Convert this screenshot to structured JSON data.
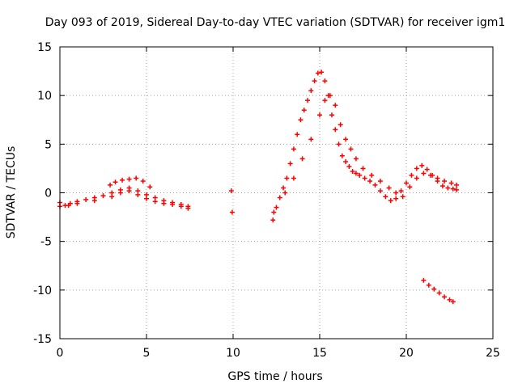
{
  "chart_data": {
    "type": "scatter",
    "title": "Day 093 of 2019, Sidereal Day-to-day VTEC variation (SDTVAR) for receiver igm1",
    "xlabel": "GPS time / hours",
    "ylabel": "SDTVAR / TECUs",
    "xlim": [
      0,
      25
    ],
    "ylim": [
      -15,
      15
    ],
    "xticks": [
      0,
      5,
      10,
      15,
      20,
      25
    ],
    "yticks": [
      -15,
      -10,
      -5,
      0,
      5,
      10,
      15
    ],
    "grid": true,
    "marker": "+",
    "series": [
      {
        "name": "igm1",
        "color": "#ff0000",
        "x": [
          0.0,
          0.3,
          0.6,
          1.0,
          1.5,
          2.0,
          2.5,
          3.0,
          3.5,
          4.0,
          4.5,
          5.0,
          5.5,
          6.0,
          6.5,
          7.0,
          7.4,
          0.0,
          0.5,
          1.0,
          2.0,
          3.0,
          3.5,
          4.0,
          4.5,
          5.0,
          5.5,
          6.0,
          6.5,
          7.0,
          7.4,
          2.9,
          3.2,
          3.6,
          4.0,
          4.4,
          4.8,
          5.2,
          9.9,
          9.95,
          12.3,
          12.35,
          12.5,
          12.7,
          12.9,
          13.1,
          13.3,
          13.5,
          13.7,
          13.9,
          14.1,
          14.3,
          14.5,
          14.7,
          14.9,
          15.1,
          15.3,
          15.5,
          15.7,
          15.9,
          16.1,
          16.3,
          16.5,
          16.7,
          16.9,
          17.1,
          17.3,
          17.6,
          17.9,
          18.2,
          18.5,
          18.8,
          19.1,
          19.4,
          19.7,
          20.0,
          20.3,
          20.6,
          20.9,
          21.2,
          21.5,
          21.8,
          22.1,
          22.4,
          22.7,
          22.9,
          13.0,
          13.5,
          14.0,
          14.5,
          15.0,
          15.3,
          15.6,
          15.9,
          16.2,
          16.5,
          16.8,
          17.1,
          17.5,
          18.0,
          18.5,
          19.0,
          19.4,
          19.8,
          20.2,
          20.6,
          21.0,
          21.4,
          21.8,
          22.2,
          22.6,
          22.9,
          21.0,
          21.3,
          21.6,
          21.9,
          22.2,
          22.5,
          22.7
        ],
        "y": [
          -1.0,
          -1.3,
          -1.1,
          -0.9,
          -0.7,
          -0.5,
          -0.3,
          0.0,
          0.3,
          0.5,
          0.2,
          -0.2,
          -0.5,
          -0.8,
          -1.0,
          -1.2,
          -1.4,
          -1.4,
          -1.3,
          -1.1,
          -0.8,
          -0.4,
          0.0,
          0.2,
          -0.2,
          -0.6,
          -0.9,
          -1.1,
          -1.2,
          -1.4,
          -1.6,
          0.8,
          1.1,
          1.3,
          1.4,
          1.5,
          1.2,
          0.6,
          0.2,
          -2.0,
          -2.8,
          -2.0,
          -1.5,
          -0.5,
          0.5,
          1.5,
          3.0,
          4.5,
          6.0,
          7.5,
          8.5,
          9.5,
          10.5,
          11.5,
          12.3,
          12.4,
          11.5,
          10.0,
          8.0,
          6.5,
          5.0,
          3.8,
          3.2,
          2.7,
          2.2,
          2.0,
          1.8,
          1.5,
          1.2,
          0.8,
          0.2,
          -0.4,
          -0.8,
          -0.6,
          0.2,
          1.0,
          1.8,
          2.5,
          2.8,
          2.4,
          1.8,
          1.2,
          0.7,
          0.5,
          0.4,
          0.3,
          0.0,
          1.5,
          3.5,
          5.5,
          8.0,
          9.5,
          10.0,
          9.0,
          7.0,
          5.5,
          4.5,
          3.5,
          2.5,
          1.8,
          1.2,
          0.5,
          0.0,
          -0.4,
          0.6,
          1.5,
          2.0,
          1.8,
          1.5,
          1.2,
          1.0,
          0.8,
          -9.0,
          -9.5,
          -9.9,
          -10.3,
          -10.7,
          -11.0,
          -11.2
        ]
      }
    ]
  }
}
